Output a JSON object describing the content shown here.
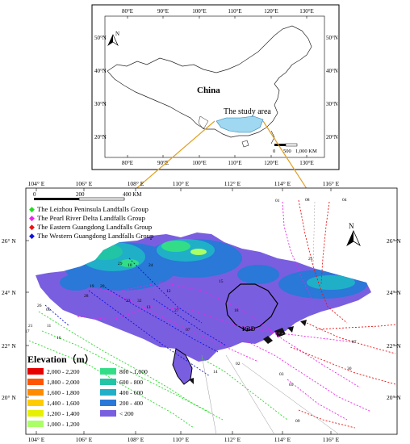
{
  "inset": {
    "top_ticks": [
      "80°E",
      "90°E",
      "100°E",
      "110°E",
      "120°E",
      "130°E"
    ],
    "bottom_ticks": [
      "80°E",
      "90°E",
      "100°E",
      "110°E",
      "120°E",
      "130°E"
    ],
    "left_ticks": [
      "50°N",
      "40°N",
      "30°N",
      "20°N"
    ],
    "right_ticks": [
      "50°N",
      "40°N",
      "30°N",
      "20°N"
    ],
    "north_label": "N",
    "country_label": "China",
    "study_area_label": "The study area",
    "scale_labels": [
      "0",
      "500",
      "1,000 KM"
    ]
  },
  "main": {
    "top_ticks": [
      "104° E",
      "106° E",
      "108° E",
      "110° E",
      "112° E",
      "114° E",
      "116° E"
    ],
    "bottom_ticks": [
      "104° E",
      "106° E",
      "108° E",
      "110° E",
      "112° E",
      "114° E",
      "116° E"
    ],
    "left_ticks": [
      "26° N",
      "24° N",
      "22° N",
      "20° N"
    ],
    "right_ticks": [
      "26° N",
      "24° N",
      "22° N",
      "20° N"
    ],
    "scale_labels": [
      "0",
      "200",
      "400 KM"
    ],
    "north_label": "N",
    "prd_label": "PRD",
    "legend": [
      {
        "label": "The Leizhou Peninsula Landfalls Group",
        "color": "#22dd22"
      },
      {
        "label": "The Pearl River Delta Landfalls Group",
        "color": "#ee22ee"
      },
      {
        "label": "The Eastern Guangdong Landfalls Group",
        "color": "#ee1111"
      },
      {
        "label": "The Western Guangdong Landfalls Group",
        "color": "#1111dd"
      }
    ],
    "elevation": {
      "title": "Elevation（m）",
      "classes": [
        {
          "label": "2,000 - 2,200",
          "color": "#e60000"
        },
        {
          "label": "1,800 - 2,000",
          "color": "#ff5500"
        },
        {
          "label": "1,600 - 1,800",
          "color": "#ff8c00"
        },
        {
          "label": "1,400 - 1,600",
          "color": "#ffcc00"
        },
        {
          "label": "1,200 - 1,400",
          "color": "#e6f000"
        },
        {
          "label": "1,000 - 1,200",
          "color": "#aaff66"
        },
        {
          "label": "800 - 1,000",
          "color": "#33dd88"
        },
        {
          "label": "600 - 800",
          "color": "#22c4a6"
        },
        {
          "label": "400 - 600",
          "color": "#1fb0c8"
        },
        {
          "label": "200 - 400",
          "color": "#2a78d8"
        },
        {
          "label": "< 200",
          "color": "#7a5ee0"
        }
      ]
    },
    "track_labels": [
      "01",
      "08",
      "04",
      "25",
      "21",
      "26",
      "06",
      "11",
      "16",
      "17",
      "19",
      "20",
      "28",
      "23",
      "32",
      "12",
      "13",
      "27",
      "07",
      "15",
      "18",
      "10",
      "29",
      "24",
      "02",
      "14",
      "09",
      "87",
      "30",
      "03",
      "05"
    ]
  }
}
